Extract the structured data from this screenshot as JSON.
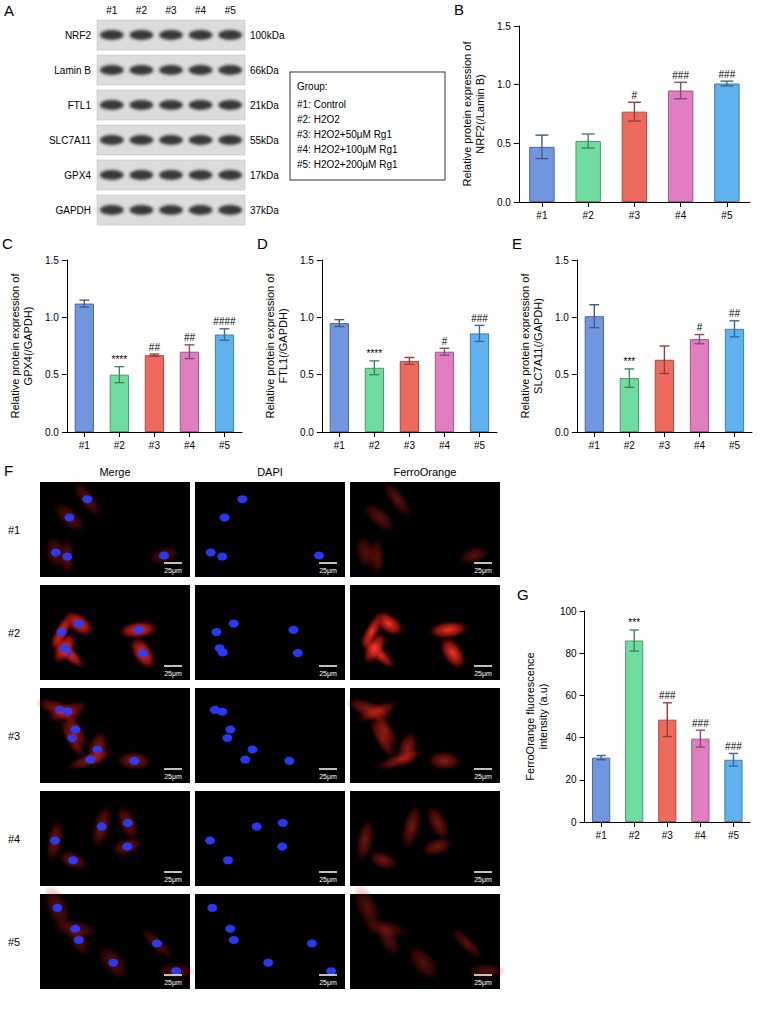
{
  "blot": {
    "panel": "A",
    "lanes": [
      "#1",
      "#2",
      "#3",
      "#4",
      "#5"
    ],
    "rows": [
      {
        "protein": "NRF2",
        "size": "100kDa"
      },
      {
        "protein": "Lamin B",
        "size": "66kDa"
      },
      {
        "protein": "FTL1",
        "size": "21kDa"
      },
      {
        "protein": "SLC7A11",
        "size": "55kDa"
      },
      {
        "protein": "GPX4",
        "size": "17kDa"
      },
      {
        "protein": "GAPDH",
        "size": "37kDa"
      }
    ],
    "group_title": "Group:",
    "groups": [
      "#1: Control",
      "#2: H2O2",
      "#3: H2O2+50μM Rg1",
      "#4: H2O2+100μM Rg1",
      "#5: H2O2+200μM Rg1"
    ]
  },
  "chart_data": [
    {
      "panel": "B",
      "type": "bar",
      "ylabel": "Relative protein expression of\nNRF2(/Lamin B)",
      "categories": [
        "#1",
        "#2",
        "#3",
        "#4",
        "#5"
      ],
      "values": [
        0.47,
        0.52,
        0.77,
        0.95,
        1.01
      ],
      "errors": [
        0.1,
        0.06,
        0.08,
        0.07,
        0.02
      ],
      "significance": [
        null,
        null,
        "#",
        "###",
        "###"
      ],
      "colors": [
        "#7096e0",
        "#6fdca0",
        "#ee6a5f",
        "#e07ec0",
        "#5fb2ee"
      ],
      "ylim": [
        0,
        1.5
      ],
      "yticks": [
        {
          "value": 0,
          "label": "0.0"
        },
        {
          "value": 0.5,
          "label": "0.5"
        },
        {
          "value": 1,
          "label": "1.0"
        },
        {
          "value": 1.5,
          "label": "1.5"
        }
      ],
      "grid": false
    },
    {
      "panel": "C",
      "type": "bar",
      "ylabel": "Relative protein expression of\nGPX4(/GAPDH)",
      "categories": [
        "#1",
        "#2",
        "#3",
        "#4",
        "#5"
      ],
      "values": [
        1.12,
        0.5,
        0.67,
        0.7,
        0.85
      ],
      "errors": [
        0.03,
        0.07,
        0.01,
        0.06,
        0.05
      ],
      "significance": [
        null,
        "****",
        "##",
        "##",
        "####"
      ],
      "colors": [
        "#7096e0",
        "#6fdca0",
        "#ee6a5f",
        "#e07ec0",
        "#5fb2ee"
      ],
      "ylim": [
        0,
        1.5
      ],
      "yticks": [
        {
          "value": 0,
          "label": "0.0"
        },
        {
          "value": 0.5,
          "label": "0.5"
        },
        {
          "value": 1,
          "label": "1.0"
        },
        {
          "value": 1.5,
          "label": "1.5"
        }
      ],
      "grid": false
    },
    {
      "panel": "D",
      "type": "bar",
      "ylabel": "Relative protein expression of\nFTL1(/GAPDH)",
      "categories": [
        "#1",
        "#2",
        "#3",
        "#4",
        "#5"
      ],
      "values": [
        0.95,
        0.56,
        0.62,
        0.7,
        0.86
      ],
      "errors": [
        0.03,
        0.06,
        0.03,
        0.03,
        0.07
      ],
      "significance": [
        null,
        "****",
        null,
        "#",
        "###"
      ],
      "colors": [
        "#7096e0",
        "#6fdca0",
        "#ee6a5f",
        "#e07ec0",
        "#5fb2ee"
      ],
      "ylim": [
        0,
        1.5
      ],
      "yticks": [
        {
          "value": 0,
          "label": "0.0"
        },
        {
          "value": 0.5,
          "label": "0.5"
        },
        {
          "value": 1,
          "label": "1.0"
        },
        {
          "value": 1.5,
          "label": "1.5"
        }
      ],
      "grid": false
    },
    {
      "panel": "E",
      "type": "bar",
      "ylabel": "Relative protein expression of\nSLC7A11(/GAPDH)",
      "categories": [
        "#1",
        "#2",
        "#3",
        "#4",
        "#5"
      ],
      "values": [
        1.01,
        0.47,
        0.63,
        0.81,
        0.9
      ],
      "errors": [
        0.1,
        0.08,
        0.12,
        0.04,
        0.07
      ],
      "significance": [
        null,
        "***",
        null,
        "#",
        "##"
      ],
      "colors": [
        "#7096e0",
        "#6fdca0",
        "#ee6a5f",
        "#e07ec0",
        "#5fb2ee"
      ],
      "ylim": [
        0,
        1.5
      ],
      "yticks": [
        {
          "value": 0,
          "label": "0.0"
        },
        {
          "value": 0.5,
          "label": "0.5"
        },
        {
          "value": 1,
          "label": "1.0"
        },
        {
          "value": 1.5,
          "label": "1.5"
        }
      ],
      "grid": false
    },
    {
      "panel": "G",
      "type": "bar",
      "ylabel": "FerroOrange fluorescence\nintensity (a.u)",
      "categories": [
        "#1",
        "#2",
        "#3",
        "#4",
        "#5"
      ],
      "values": [
        30.5,
        86,
        48.5,
        39.5,
        29.5
      ],
      "errors": [
        1,
        5,
        8,
        4,
        3
      ],
      "significance": [
        null,
        "***",
        "###",
        "###",
        "###"
      ],
      "colors": [
        "#7096e0",
        "#6fdca0",
        "#ee6a5f",
        "#e07ec0",
        "#5fb2ee"
      ],
      "ylim": [
        0,
        100
      ],
      "yticks": [
        0,
        20,
        40,
        60,
        80,
        100
      ],
      "grid": false
    }
  ],
  "images": {
    "panel": "F",
    "rows": [
      "#1",
      "#2",
      "#3",
      "#4",
      "#5"
    ],
    "columns": [
      "Merge",
      "DAPI",
      "FerroOrange"
    ],
    "scale_bar": "25μm"
  }
}
